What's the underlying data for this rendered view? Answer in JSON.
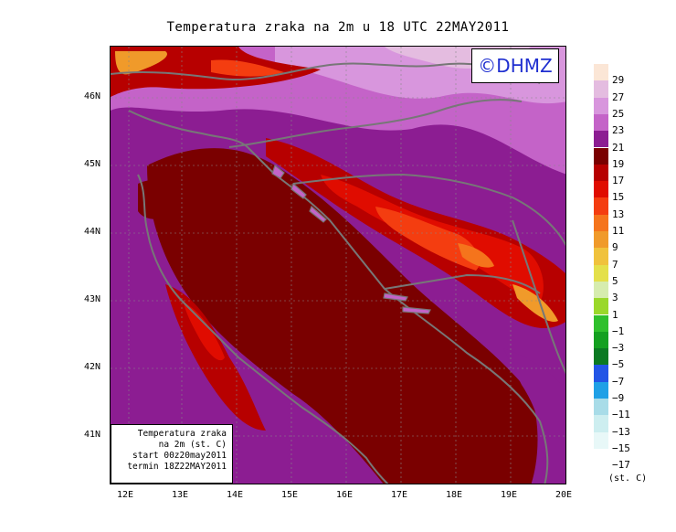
{
  "title": "Temperatura zraka na 2m u 18 UTC 22MAY2011",
  "watermark": "©DHMZ",
  "info_box": {
    "line1": "Temperatura zraka",
    "line2": "na 2m (st. C)",
    "line3": "start 00z20may2011",
    "line4": "termin 18Z22MAY2011"
  },
  "axes": {
    "x_ticks": [
      "12E",
      "13E",
      "14E",
      "15E",
      "16E",
      "17E",
      "18E",
      "19E",
      "20E"
    ],
    "y_ticks": [
      "46N",
      "45N",
      "44N",
      "43N",
      "42N",
      "41N"
    ]
  },
  "legend": {
    "units": "(st. C)",
    "labels": [
      "29",
      "27",
      "25",
      "23",
      "21",
      "19",
      "17",
      "15",
      "13",
      "11",
      "9",
      "7",
      "5",
      "3",
      "1",
      "−1",
      "−3",
      "−5",
      "−7",
      "−9",
      "−11",
      "−13",
      "−15",
      "−17"
    ],
    "colors": [
      "#fbe6d6",
      "#e4bce0",
      "#d896dd",
      "#c463c8",
      "#8c1d92",
      "#7a0000",
      "#b70000",
      "#e00c00",
      "#f43d10",
      "#f5741c",
      "#f09a2a",
      "#f0c23c",
      "#e4e04a",
      "#d6ecae",
      "#9ad82a",
      "#2fc02c",
      "#14a020",
      "#0b7a22",
      "#2255e6",
      "#1fa0e6",
      "#a8dce8",
      "#cdeef0",
      "#e8f8f8",
      "#ffffff"
    ]
  }
}
